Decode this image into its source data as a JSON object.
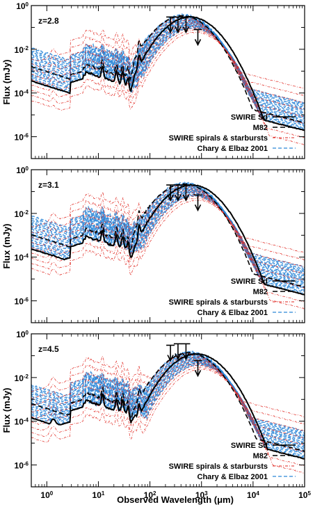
{
  "figure": {
    "xlabel": "Observed Wavelength (μm)",
    "ylabel": "Flux (mJy)"
  },
  "colors": {
    "swire_sd": "#000000",
    "m82": "#000000",
    "swire_spirals_starbursts": "#e0261f",
    "chary_elbaz": "#2a86d8"
  },
  "chart_data": [
    {
      "type": "line",
      "panel_label": "z=2.8",
      "xscale": "log",
      "yscale": "log",
      "xlim": [
        0.5,
        100000
      ],
      "ylim": [
        1e-07,
        1
      ],
      "xticks": [
        "10^0",
        "10^1",
        "10^2",
        "10^3",
        "10^4",
        "10^5"
      ],
      "yticks": [
        "10^0",
        "10^-2",
        "10^-4",
        "10^-6"
      ],
      "legend": [
        "SWIRE Sd",
        "M82",
        "SWIRE spirals & starbursts",
        "Chary & Elbaz 2001"
      ],
      "legend_position": "bottom-right",
      "peak_wavelength": 600,
      "peak_flux": 0.3,
      "upper_limits": [
        {
          "x": 250,
          "y": 0.3
        },
        {
          "x": 350,
          "y": 0.3
        },
        {
          "x": 500,
          "y": 0.3
        },
        {
          "x": 850,
          "y": 0.08
        }
      ]
    },
    {
      "type": "line",
      "panel_label": "z=3.1",
      "xscale": "log",
      "yscale": "log",
      "xlim": [
        0.5,
        100000
      ],
      "ylim": [
        1e-07,
        1
      ],
      "xticks": [
        "10^0",
        "10^1",
        "10^2",
        "10^3",
        "10^4",
        "10^5"
      ],
      "yticks": [
        "10^0",
        "10^-2",
        "10^-4",
        "10^-6"
      ],
      "legend": [
        "SWIRE Sd",
        "M82",
        "SWIRE spirals & starbursts",
        "Chary & Elbaz 2001"
      ],
      "legend_position": "bottom-right",
      "peak_wavelength": 650,
      "peak_flux": 0.2,
      "upper_limits": [
        {
          "x": 250,
          "y": 0.2
        },
        {
          "x": 350,
          "y": 0.2
        },
        {
          "x": 500,
          "y": 0.2
        },
        {
          "x": 850,
          "y": 0.07
        }
      ]
    },
    {
      "type": "line",
      "panel_label": "z=4.5",
      "xscale": "log",
      "yscale": "log",
      "xlim": [
        0.5,
        100000
      ],
      "ylim": [
        1e-07,
        1
      ],
      "xticks": [
        "10^0",
        "10^1",
        "10^2",
        "10^3",
        "10^4",
        "10^5"
      ],
      "yticks": [
        "10^0",
        "10^-2",
        "10^-4",
        "10^-6"
      ],
      "legend": [
        "SWIRE Sd",
        "M82",
        "SWIRE spirals & starbursts",
        "Chary & Elbaz 2001"
      ],
      "legend_position": "bottom-right",
      "peak_wavelength": 800,
      "peak_flux": 0.12,
      "upper_limits": [
        {
          "x": 250,
          "y": 0.3
        },
        {
          "x": 350,
          "y": 0.35
        },
        {
          "x": 500,
          "y": 0.35
        },
        {
          "x": 850,
          "y": 0.06
        }
      ]
    }
  ]
}
